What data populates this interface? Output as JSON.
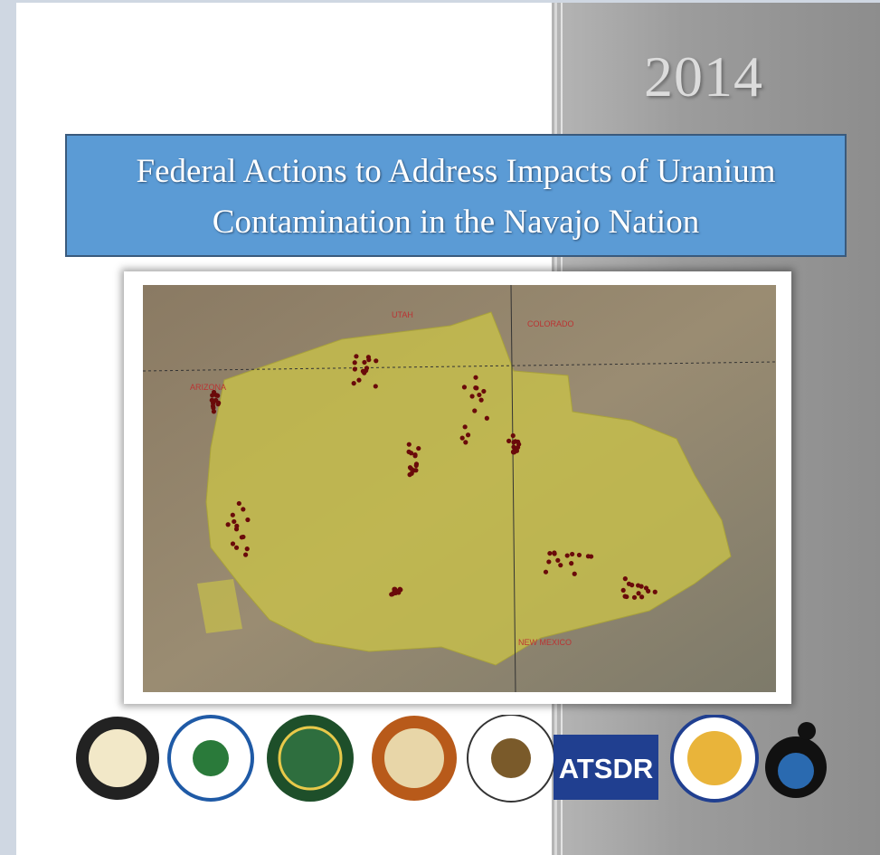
{
  "header": {
    "year": "2014",
    "title_lines": [
      "Federal Actions to Address Impacts of Uranium",
      "Contamination in the Navajo Nation"
    ]
  },
  "map": {
    "labels": [
      "UTAH",
      "COLORADO",
      "ARIZONA",
      "NEW MEXICO"
    ]
  },
  "logos": {
    "atsdr": "ATSDR"
  }
}
